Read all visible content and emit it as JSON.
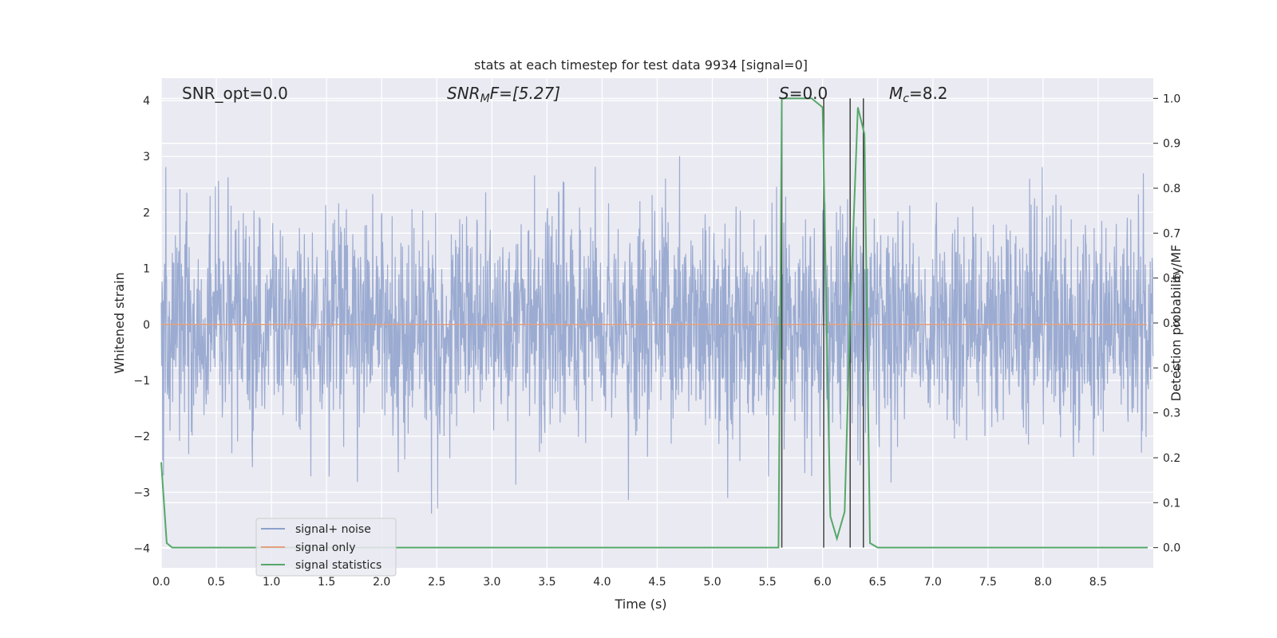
{
  "chart_data": {
    "type": "line",
    "title": "stats at each timestep for test data 9934 [signal=0]",
    "xlabel": "Time (s)",
    "ylabel": "Whitened strain",
    "y2label": "Detection probability/MF",
    "xlim": [
      0.0,
      9.0
    ],
    "ylim": [
      -4.35,
      4.4
    ],
    "y2lim": [
      -0.045,
      1.045
    ],
    "xticks": [
      "0.0",
      "0.5",
      "1.0",
      "1.5",
      "2.0",
      "2.5",
      "3.0",
      "3.5",
      "4.0",
      "4.5",
      "5.0",
      "5.5",
      "6.0",
      "6.5",
      "7.0",
      "7.5",
      "8.0",
      "8.5"
    ],
    "yticks": [
      "4",
      "3",
      "2",
      "1",
      "0",
      "−1",
      "−2",
      "−3",
      "−4"
    ],
    "y2ticks": [
      "1.0",
      "0.9",
      "0.8",
      "0.7",
      "0.6",
      "0.5",
      "0.4",
      "0.3",
      "0.2",
      "0.1",
      "0.0"
    ],
    "grid": true,
    "legend_position": "lower-left",
    "annotations": {
      "snr_opt": "SNR_opt=0.0",
      "snr_mf_base": "SNR",
      "snr_mf_sub": "M",
      "snr_mf_rest": "F=[5.27]",
      "s_base": "S",
      "s_rest": "=0.0",
      "mc_base": "M",
      "mc_sub": "c",
      "mc_rest": "=8.2"
    },
    "series": [
      {
        "name": "signal+ noise",
        "color": "#8da0cb",
        "description_values": "whitened noise, roughly within [-4, 4]"
      },
      {
        "name": "signal only",
        "color": "#e5a07f",
        "values_constant": 0
      },
      {
        "name": "signal statistics",
        "color": "#55a868",
        "x": [
          0.0,
          0.05,
          0.1,
          0.15,
          5.6,
          5.63,
          5.68,
          5.9,
          6.0,
          6.07,
          6.13,
          6.2,
          6.25,
          6.32,
          6.38,
          6.43,
          6.5,
          8.95
        ],
        "y": [
          0.19,
          0.01,
          0.0,
          0.0,
          0.0,
          1.0,
          1.0,
          1.0,
          0.98,
          0.07,
          0.02,
          0.08,
          0.52,
          0.98,
          0.92,
          0.01,
          0.0,
          0.0
        ]
      }
    ],
    "vertical_lines_x": [
      5.63,
      6.01,
      6.25,
      6.37
    ]
  },
  "legend": {
    "items": [
      {
        "label": "signal+ noise",
        "color": "#8da0cb"
      },
      {
        "label": "signal only",
        "color": "#e5a07f"
      },
      {
        "label": "signal statistics",
        "color": "#55a868"
      }
    ]
  },
  "colors": {
    "plot_bg": "#eaeaf2",
    "grid": "#ffffff",
    "vline": "#404040"
  }
}
